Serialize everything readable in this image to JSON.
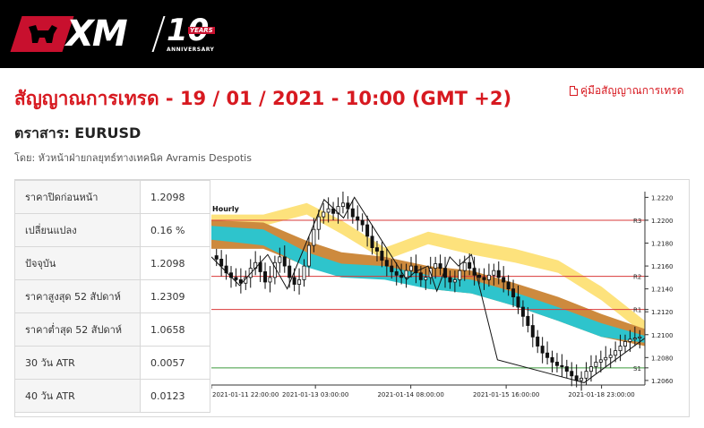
{
  "header": {
    "brand": "XM",
    "anniversary_number": "10",
    "anniversary_years": "YEARS",
    "anniversary_label": "ANNIVERSARY",
    "background": "#000000",
    "accent": "#c8102e"
  },
  "page": {
    "title": "สัญญาณการเทรด - 19 / 01 / 2021 - 10:00 (GMT +2)",
    "guide_link": "คู่มือสัญญาณการเทรด",
    "guide_icon": "pdf-icon",
    "instrument": "ตราสาร: EURUSD",
    "author": "โดย: หัวหน้าฝ่ายกลยุทธ์ทางเทคนิค Avramis Despotis"
  },
  "stats": [
    {
      "label": "ราคาปิดก่อนหน้า",
      "value": "1.2098"
    },
    {
      "label": "เปลี่ยนแปลง",
      "value": "0.16 %"
    },
    {
      "label": "ปัจจุบัน",
      "value": "1.2098"
    },
    {
      "label": "ราคาสูงสุด 52 สัปดาห์",
      "value": "1.2309"
    },
    {
      "label": "ราคาต่ำสุด 52 สัปดาห์",
      "value": "1.0658"
    },
    {
      "label": "30 วัน ATR",
      "value": "0.0057"
    },
    {
      "label": "40 วัน ATR",
      "value": "0.0123"
    }
  ],
  "chart_data": {
    "type": "candlestick",
    "timeframe_label": "Hourly",
    "y_ticks": [
      "1.2220",
      "1.2200",
      "1.2180",
      "1.2160",
      "1.2140",
      "1.2120",
      "1.2100",
      "1.2080",
      "1.2060"
    ],
    "ylim": [
      1.2056,
      1.2225
    ],
    "x_ticks": [
      "2021-01-11 22:00:00",
      "2021-01-13 03:00:00",
      "2021-01-14 08:00:00",
      "2021-01-15 16:00:00",
      "2021-01-18 23:00:00"
    ],
    "levels": [
      {
        "name": "R3",
        "value": 1.22,
        "color": "#d93a3a"
      },
      {
        "name": "R2",
        "value": 1.2151,
        "color": "#d93a3a"
      },
      {
        "name": "R1",
        "value": 1.2122,
        "color": "#d93a3a"
      },
      {
        "name": "S1",
        "value": 1.2071,
        "color": "#3c9a3c"
      }
    ],
    "bands": [
      {
        "name": "outer",
        "color": "#fde27c",
        "points": [
          [
            0,
            1.2205,
            1.2195
          ],
          [
            0.12,
            1.2205,
            1.2195
          ],
          [
            0.22,
            1.2215,
            1.2205
          ],
          [
            0.3,
            1.22,
            1.2188
          ],
          [
            0.4,
            1.2176,
            1.2165
          ],
          [
            0.5,
            1.219,
            1.2179
          ],
          [
            0.6,
            1.2182,
            1.217
          ],
          [
            0.7,
            1.2175,
            1.2163
          ],
          [
            0.8,
            1.2165,
            1.2154
          ],
          [
            0.9,
            1.2142,
            1.213
          ],
          [
            1,
            1.2112,
            1.21
          ]
        ]
      },
      {
        "name": "mid",
        "color": "#cd8a3e",
        "points": [
          [
            0,
            1.22,
            1.2175
          ],
          [
            0.12,
            1.2198,
            1.2175
          ],
          [
            0.22,
            1.2182,
            1.216
          ],
          [
            0.3,
            1.2172,
            1.2152
          ],
          [
            0.4,
            1.2168,
            1.215
          ],
          [
            0.5,
            1.216,
            1.214
          ],
          [
            0.6,
            1.2156,
            1.2136
          ],
          [
            0.7,
            1.2145,
            1.2125
          ],
          [
            0.8,
            1.2133,
            1.2112
          ],
          [
            0.9,
            1.2118,
            1.2098
          ],
          [
            1,
            1.2105,
            1.209
          ]
        ]
      },
      {
        "name": "inner",
        "color": "#2ec4cc",
        "points": [
          [
            0,
            1.2195,
            1.2183
          ],
          [
            0.12,
            1.2192,
            1.2178
          ],
          [
            0.22,
            1.2172,
            1.2159
          ],
          [
            0.3,
            1.2162,
            1.215
          ],
          [
            0.4,
            1.216,
            1.2148
          ],
          [
            0.5,
            1.2152,
            1.214
          ],
          [
            0.6,
            1.2148,
            1.2136
          ],
          [
            0.7,
            1.2137,
            1.2125
          ],
          [
            0.8,
            1.2124,
            1.2112
          ],
          [
            0.9,
            1.211,
            1.2098
          ],
          [
            1,
            1.2099,
            1.2093
          ]
        ]
      }
    ],
    "zigzag": [
      [
        0,
        1.2168
      ],
      [
        0.065,
        1.2143
      ],
      [
        0.13,
        1.217
      ],
      [
        0.175,
        1.214
      ],
      [
        0.26,
        1.2218
      ],
      [
        0.305,
        1.2202
      ],
      [
        0.33,
        1.222
      ],
      [
        0.45,
        1.2148
      ],
      [
        0.47,
        1.2155
      ],
      [
        0.5,
        1.216
      ],
      [
        0.52,
        1.2138
      ],
      [
        0.55,
        1.2168
      ],
      [
        0.57,
        1.216
      ],
      [
        0.6,
        1.217
      ],
      [
        0.66,
        1.2078
      ],
      [
        0.8,
        1.2064
      ],
      [
        0.86,
        1.2058
      ],
      [
        1,
        1.2097
      ]
    ],
    "closes": [
      1.2166,
      1.216,
      1.2154,
      1.215,
      1.2148,
      1.2145,
      1.215,
      1.2158,
      1.2163,
      1.2155,
      1.2146,
      1.215,
      1.2163,
      1.2168,
      1.216,
      1.215,
      1.2144,
      1.2148,
      1.216,
      1.2178,
      1.2192,
      1.2203,
      1.2207,
      1.221,
      1.2206,
      1.2212,
      1.2215,
      1.221,
      1.2203,
      1.22,
      1.2196,
      1.2186,
      1.2176,
      1.2173,
      1.2165,
      1.216,
      1.2155,
      1.2152,
      1.215,
      1.2156,
      1.216,
      1.2154,
      1.2148,
      1.215,
      1.2158,
      1.2162,
      1.2158,
      1.215,
      1.2146,
      1.2148,
      1.2156,
      1.2163,
      1.2158,
      1.2152,
      1.215,
      1.2148,
      1.2152,
      1.2156,
      1.215,
      1.2146,
      1.214,
      1.2133,
      1.2124,
      1.2116,
      1.2108,
      1.2098,
      1.209,
      1.2084,
      1.208,
      1.2076,
      1.2073,
      1.2072,
      1.2068,
      1.2064,
      1.206,
      1.2062,
      1.2068,
      1.2072,
      1.2076,
      1.2078,
      1.208,
      1.2082,
      1.2086,
      1.209,
      1.2094,
      1.2096,
      1.2097,
      1.2098
    ]
  }
}
